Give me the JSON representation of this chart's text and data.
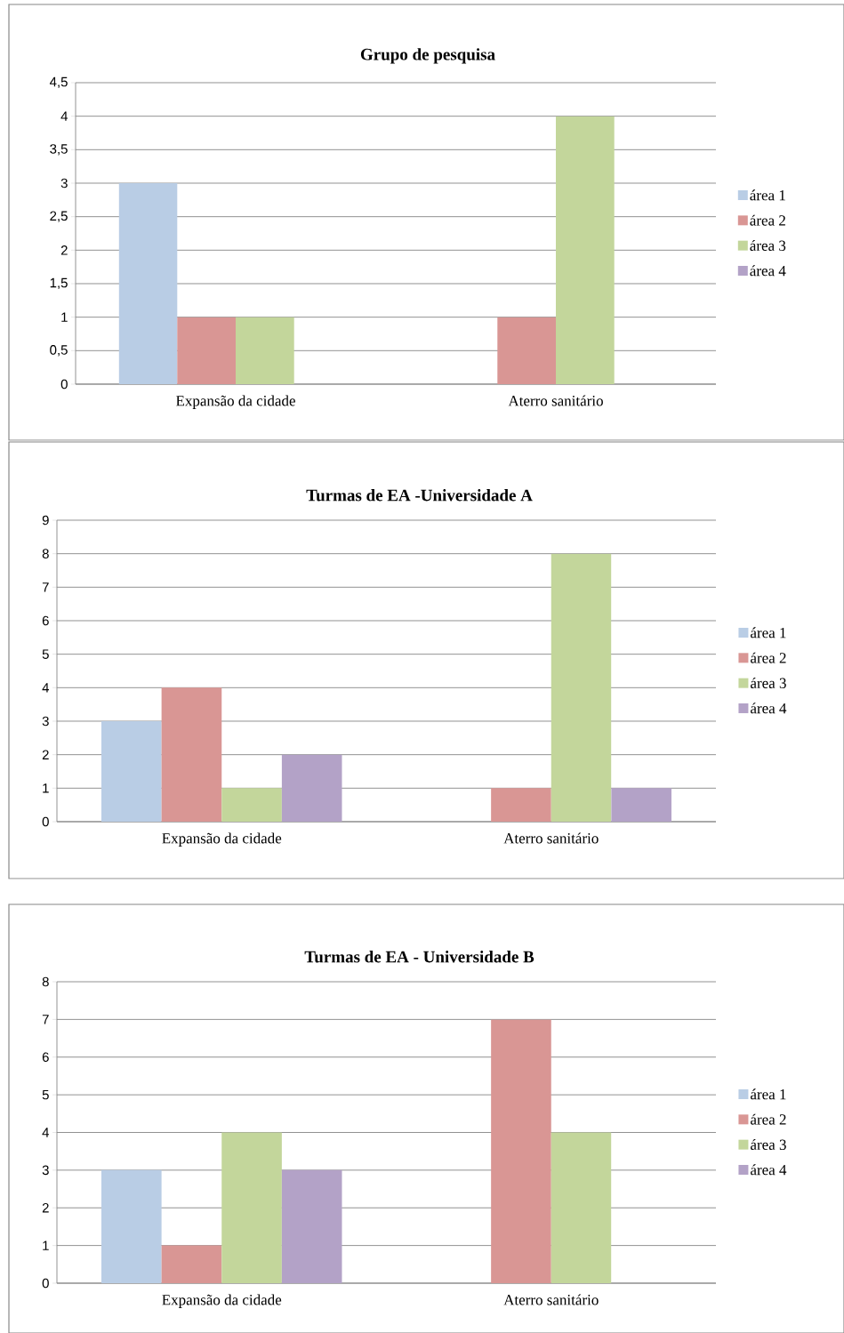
{
  "chart_data": [
    {
      "type": "bar",
      "title": "Grupo de pesquisa",
      "categories": [
        "Expansão da cidade",
        "Aterro sanitário"
      ],
      "series": [
        {
          "name": "área 1",
          "color": "#b9cde5",
          "values": [
            3,
            0
          ]
        },
        {
          "name": "área 2",
          "color": "#d99694",
          "values": [
            1,
            1
          ]
        },
        {
          "name": "área 3",
          "color": "#c3d69b",
          "values": [
            1,
            4
          ]
        },
        {
          "name": "área 4",
          "color": "#b3a2c7",
          "values": [
            0,
            0
          ]
        }
      ],
      "ylim": [
        0,
        4.5
      ],
      "yticks": [
        0,
        {
          "value": 0.5,
          "label": "0,5"
        },
        1,
        {
          "value": 1.5,
          "label": "1,5"
        },
        2,
        {
          "value": 2.5,
          "label": "2,5"
        },
        3,
        {
          "value": 3.5,
          "label": "3,5"
        },
        4,
        {
          "value": 4.5,
          "label": "4,5"
        }
      ],
      "grid": "y",
      "legend": "right"
    },
    {
      "type": "bar",
      "title": "Turmas de EA -Universidade A",
      "categories": [
        "Expansão da cidade",
        "Aterro sanitário"
      ],
      "series": [
        {
          "name": "área 1",
          "color": "#b9cde5",
          "values": [
            3,
            0
          ]
        },
        {
          "name": "área 2",
          "color": "#d99694",
          "values": [
            4,
            1
          ]
        },
        {
          "name": "área 3",
          "color": "#c3d69b",
          "values": [
            1,
            8
          ]
        },
        {
          "name": "área 4",
          "color": "#b3a2c7",
          "values": [
            2,
            1
          ]
        }
      ],
      "ylim": [
        0,
        9
      ],
      "yticks": [
        0,
        1,
        2,
        3,
        4,
        5,
        6,
        7,
        8,
        9
      ],
      "grid": "y",
      "legend": "right"
    },
    {
      "type": "bar",
      "title": "Turmas de EA - Universidade B",
      "categories": [
        "Expansão da cidade",
        "Aterro sanitário"
      ],
      "series": [
        {
          "name": "área 1",
          "color": "#b9cde5",
          "values": [
            3,
            0
          ]
        },
        {
          "name": "área 2",
          "color": "#d99694",
          "values": [
            1,
            7
          ]
        },
        {
          "name": "área 3",
          "color": "#c3d69b",
          "values": [
            4,
            4
          ]
        },
        {
          "name": "área 4",
          "color": "#b3a2c7",
          "values": [
            3,
            0
          ]
        }
      ],
      "ylim": [
        0,
        8
      ],
      "yticks": [
        0,
        1,
        2,
        3,
        4,
        5,
        6,
        7,
        8
      ],
      "grid": "y",
      "legend": "right"
    }
  ]
}
